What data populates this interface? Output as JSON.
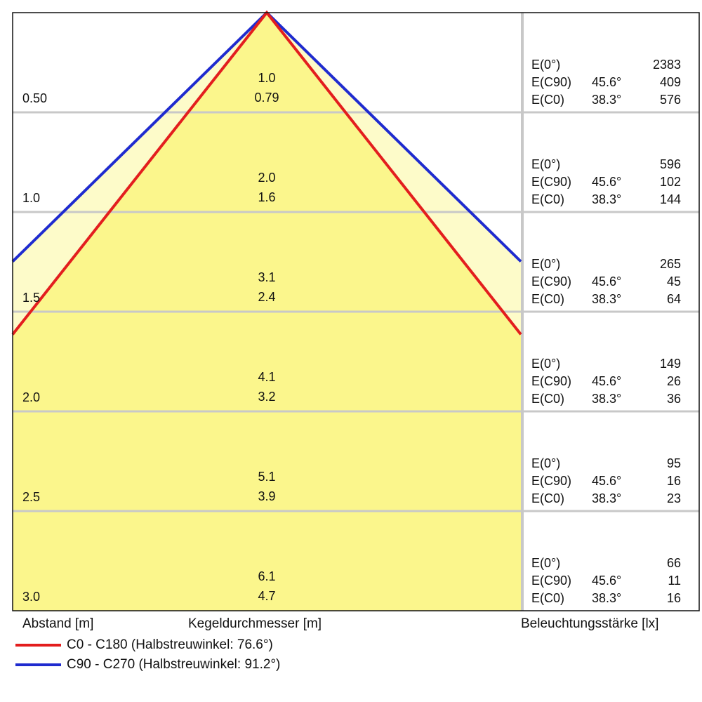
{
  "chart_data": {
    "type": "light-cone",
    "xlabel": "Kegeldurchmesser [m]",
    "ylabel": "Abstand [m]",
    "right_label": "Beleuchtungsstärke [lx]",
    "series": [
      {
        "name": "C0 - C180 (Halbstreuwinkel: 76.6°)",
        "color": "#e31e1e",
        "half_angle_deg": 38.3
      },
      {
        "name": "C90 - C270 (Halbstreuwinkel: 91.2°)",
        "color": "#1f2bcf",
        "half_angle_deg": 45.6
      }
    ],
    "rows": [
      {
        "distance": "0.50",
        "d_c90": "1.0",
        "d_c0": "0.79",
        "e": [
          {
            "label": "E(0°)",
            "angle": "",
            "value": "2383"
          },
          {
            "label": "E(C90)",
            "angle": "45.6°",
            "value": "409"
          },
          {
            "label": "E(C0)",
            "angle": "38.3°",
            "value": "576"
          }
        ]
      },
      {
        "distance": "1.0",
        "d_c90": "2.0",
        "d_c0": "1.6",
        "e": [
          {
            "label": "E(0°)",
            "angle": "",
            "value": "596"
          },
          {
            "label": "E(C90)",
            "angle": "45.6°",
            "value": "102"
          },
          {
            "label": "E(C0)",
            "angle": "38.3°",
            "value": "144"
          }
        ]
      },
      {
        "distance": "1.5",
        "d_c90": "3.1",
        "d_c0": "2.4",
        "e": [
          {
            "label": "E(0°)",
            "angle": "",
            "value": "265"
          },
          {
            "label": "E(C90)",
            "angle": "45.6°",
            "value": "45"
          },
          {
            "label": "E(C0)",
            "angle": "38.3°",
            "value": "64"
          }
        ]
      },
      {
        "distance": "2.0",
        "d_c90": "4.1",
        "d_c0": "3.2",
        "e": [
          {
            "label": "E(0°)",
            "angle": "",
            "value": "149"
          },
          {
            "label": "E(C90)",
            "angle": "45.6°",
            "value": "26"
          },
          {
            "label": "E(C0)",
            "angle": "38.3°",
            "value": "36"
          }
        ]
      },
      {
        "distance": "2.5",
        "d_c90": "5.1",
        "d_c0": "3.9",
        "e": [
          {
            "label": "E(0°)",
            "angle": "",
            "value": "95"
          },
          {
            "label": "E(C90)",
            "angle": "45.6°",
            "value": "16"
          },
          {
            "label": "E(C0)",
            "angle": "38.3°",
            "value": "23"
          }
        ]
      },
      {
        "distance": "3.0",
        "d_c90": "6.1",
        "d_c0": "4.7",
        "e": [
          {
            "label": "E(0°)",
            "angle": "",
            "value": "66"
          },
          {
            "label": "E(C90)",
            "angle": "45.6°",
            "value": "11"
          },
          {
            "label": "E(C0)",
            "angle": "38.3°",
            "value": "16"
          }
        ]
      }
    ],
    "colors": {
      "fill_inner": "#fbf68c",
      "fill_outer": "#fdfbc9",
      "grid": "#c8c8c8",
      "frame": "#111111"
    }
  }
}
